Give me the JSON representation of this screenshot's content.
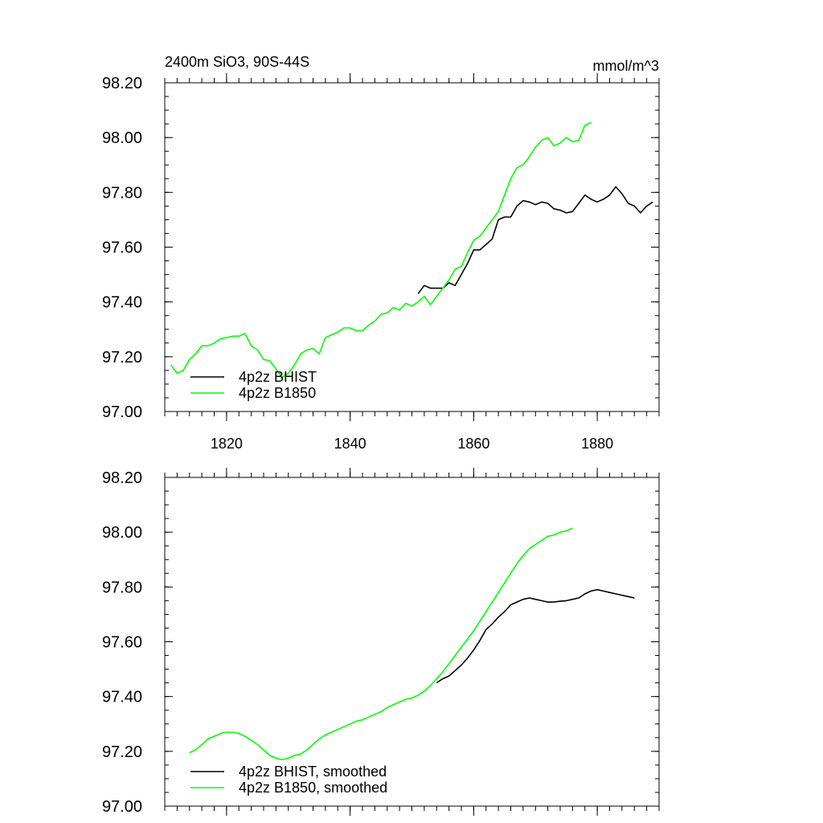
{
  "chart_data": [
    {
      "type": "line",
      "title": "2400m SiO3, 90S-44S",
      "units_label": "mmol/m^3",
      "xlim": [
        1810,
        1890
      ],
      "ylim": [
        97.0,
        98.2
      ],
      "x_ticks": [
        1820,
        1840,
        1860,
        1880
      ],
      "x_tick_labels": [
        "1820",
        "1840",
        "1860",
        "1880"
      ],
      "y_ticks": [
        97.0,
        97.2,
        97.4,
        97.6,
        97.8,
        98.0,
        98.2
      ],
      "y_tick_labels": [
        "97.00",
        "97.20",
        "97.40",
        "97.60",
        "97.80",
        "98.00",
        "98.20"
      ],
      "legend_position": "bottom-left",
      "grid": false,
      "series": [
        {
          "name": "4p2z BHIST",
          "color": "#000000",
          "x": [
            1851,
            1852,
            1853,
            1854,
            1855,
            1856,
            1857,
            1858,
            1859,
            1860,
            1861,
            1862,
            1863,
            1864,
            1865,
            1866,
            1867,
            1868,
            1869,
            1870,
            1871,
            1872,
            1873,
            1874,
            1875,
            1876,
            1877,
            1878,
            1879,
            1880,
            1881,
            1882,
            1883,
            1884,
            1885,
            1886,
            1887,
            1888,
            1889
          ],
          "values": [
            97.43,
            97.46,
            97.45,
            97.45,
            97.45,
            97.47,
            97.46,
            97.5,
            97.54,
            97.59,
            97.59,
            97.61,
            97.63,
            97.7,
            97.71,
            97.71,
            97.75,
            97.77,
            97.765,
            97.755,
            97.765,
            97.76,
            97.74,
            97.735,
            97.725,
            97.73,
            97.76,
            97.79,
            97.775,
            97.765,
            97.775,
            97.79,
            97.82,
            97.795,
            97.76,
            97.75,
            97.725,
            97.75,
            97.765
          ]
        },
        {
          "name": "4p2z B1850",
          "color": "#00ff00",
          "x": [
            1811,
            1812,
            1813,
            1814,
            1815,
            1816,
            1817,
            1818,
            1819,
            1820,
            1821,
            1822,
            1823,
            1824,
            1825,
            1826,
            1827,
            1828,
            1829,
            1830,
            1831,
            1832,
            1833,
            1834,
            1835,
            1836,
            1837,
            1838,
            1839,
            1840,
            1841,
            1842,
            1843,
            1844,
            1845,
            1846,
            1847,
            1848,
            1849,
            1850,
            1851,
            1852,
            1853,
            1854,
            1855,
            1856,
            1857,
            1858,
            1859,
            1860,
            1861,
            1862,
            1863,
            1864,
            1865,
            1866,
            1867,
            1868,
            1869,
            1870,
            1871,
            1872,
            1873,
            1874,
            1875,
            1876,
            1877,
            1878,
            1879
          ],
          "values": [
            97.17,
            97.14,
            97.15,
            97.19,
            97.21,
            97.24,
            97.24,
            97.25,
            97.265,
            97.27,
            97.275,
            97.275,
            97.285,
            97.24,
            97.225,
            97.19,
            97.185,
            97.155,
            97.125,
            97.14,
            97.17,
            97.21,
            97.225,
            97.23,
            97.21,
            97.27,
            97.28,
            97.29,
            97.305,
            97.305,
            97.295,
            97.295,
            97.315,
            97.33,
            97.355,
            97.36,
            97.38,
            97.37,
            97.395,
            97.385,
            97.4,
            97.42,
            97.39,
            97.42,
            97.45,
            97.48,
            97.52,
            97.53,
            97.58,
            97.625,
            97.64,
            97.67,
            97.7,
            97.73,
            97.79,
            97.85,
            97.89,
            97.9,
            97.93,
            97.965,
            97.99,
            98.0,
            97.97,
            97.98,
            98.0,
            97.985,
            97.99,
            98.045,
            98.055
          ]
        }
      ]
    },
    {
      "type": "line",
      "xlim": [
        1810,
        1890
      ],
      "ylim": [
        97.0,
        98.2
      ],
      "x_ticks": [
        1820,
        1840,
        1860,
        1880
      ],
      "y_ticks": [
        97.0,
        97.2,
        97.4,
        97.6,
        97.8,
        98.0,
        98.2
      ],
      "y_tick_labels": [
        "97.00",
        "97.20",
        "97.40",
        "97.60",
        "97.80",
        "98.00",
        "98.20"
      ],
      "legend_position": "bottom-left",
      "grid": false,
      "series": [
        {
          "name": "4p2z BHIST, smoothed",
          "color": "#000000",
          "x": [
            1854,
            1855,
            1856,
            1857,
            1858,
            1859,
            1860,
            1861,
            1862,
            1863,
            1864,
            1865,
            1866,
            1867,
            1868,
            1869,
            1870,
            1871,
            1872,
            1873,
            1874,
            1875,
            1876,
            1877,
            1878,
            1879,
            1880,
            1881,
            1882,
            1883,
            1884,
            1885,
            1886
          ],
          "values": [
            97.45,
            97.465,
            97.475,
            97.495,
            97.515,
            97.54,
            97.57,
            97.605,
            97.645,
            97.665,
            97.69,
            97.71,
            97.735,
            97.745,
            97.755,
            97.76,
            97.755,
            97.75,
            97.745,
            97.745,
            97.748,
            97.75,
            97.755,
            97.76,
            97.775,
            97.785,
            97.79,
            97.785,
            97.78,
            97.775,
            97.77,
            97.765,
            97.76
          ]
        },
        {
          "name": "4p2z B1850, smoothed",
          "color": "#00ff00",
          "x": [
            1814,
            1815,
            1816,
            1817,
            1818,
            1819,
            1820,
            1821,
            1822,
            1823,
            1824,
            1825,
            1826,
            1827,
            1828,
            1829,
            1830,
            1831,
            1832,
            1833,
            1834,
            1835,
            1836,
            1837,
            1838,
            1839,
            1840,
            1841,
            1842,
            1843,
            1844,
            1845,
            1846,
            1847,
            1848,
            1849,
            1850,
            1851,
            1852,
            1853,
            1854,
            1855,
            1856,
            1857,
            1858,
            1859,
            1860,
            1861,
            1862,
            1863,
            1864,
            1865,
            1866,
            1867,
            1868,
            1869,
            1870,
            1871,
            1872,
            1873,
            1874,
            1875,
            1876
          ],
          "values": [
            97.195,
            97.205,
            97.225,
            97.245,
            97.255,
            97.265,
            97.27,
            97.27,
            97.265,
            97.255,
            97.24,
            97.225,
            97.205,
            97.185,
            97.175,
            97.17,
            97.175,
            97.185,
            97.19,
            97.205,
            97.225,
            97.245,
            97.26,
            97.27,
            97.28,
            97.29,
            97.3,
            97.31,
            97.315,
            97.325,
            97.335,
            97.345,
            97.36,
            97.37,
            97.38,
            97.39,
            97.395,
            97.405,
            97.42,
            97.44,
            97.465,
            97.49,
            97.52,
            97.55,
            97.58,
            97.61,
            97.64,
            97.675,
            97.71,
            97.745,
            97.78,
            97.815,
            97.85,
            97.885,
            97.915,
            97.94,
            97.955,
            97.97,
            97.985,
            97.99,
            98.0,
            98.005,
            98.015
          ]
        }
      ]
    }
  ]
}
